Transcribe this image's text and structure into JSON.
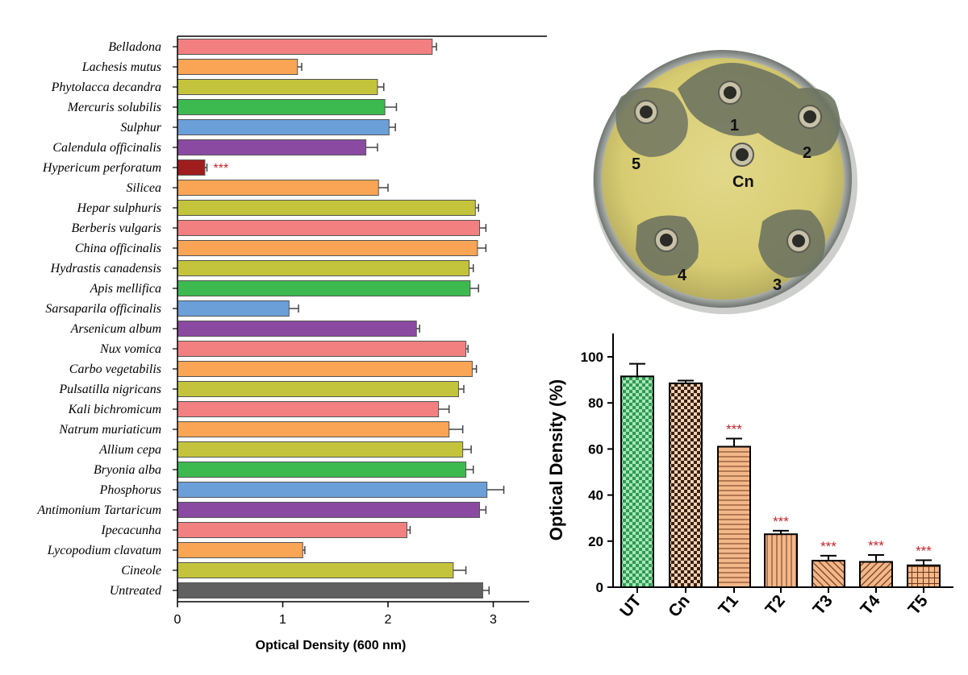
{
  "chart_data": [
    {
      "type": "bar",
      "orientation": "horizontal",
      "xlabel": "Optical Density (600 nm)",
      "xlim": [
        0,
        3.35
      ],
      "xticks": [
        0,
        1,
        2,
        3
      ],
      "grid": false,
      "categories": [
        "Belladona",
        "Lachesis mutus",
        "Phytolacca decandra",
        "Mercuris solubilis",
        "Sulphur",
        "Calendula officinalis",
        "Hypericum perforatum",
        "Silicea",
        "Hepar sulphuris",
        "Berberis vulgaris",
        "China officinalis",
        "Hydrastis canadensis",
        "Apis mellifica",
        "Sarsaparila officinalis",
        "Arsenicum album",
        "Nux vomica",
        "Carbo vegetabilis",
        "Pulsatilla nigricans",
        "Kali bichromicum",
        "Natrum muriaticum",
        "Allium cepa",
        "Bryonia alba",
        "Phosphorus",
        "Antimonium Tartaricum",
        "Ipecacunha",
        "Lycopodium clavatum",
        "Cineole",
        "Untreated"
      ],
      "values": [
        2.42,
        1.14,
        1.9,
        1.97,
        2.01,
        1.79,
        0.26,
        1.91,
        2.83,
        2.87,
        2.85,
        2.77,
        2.78,
        1.06,
        2.27,
        2.74,
        2.8,
        2.67,
        2.48,
        2.58,
        2.71,
        2.74,
        2.94,
        2.87,
        2.18,
        1.19,
        2.62,
        2.9
      ],
      "errors": [
        0.04,
        0.04,
        0.06,
        0.11,
        0.06,
        0.11,
        0.02,
        0.09,
        0.03,
        0.06,
        0.08,
        0.04,
        0.08,
        0.09,
        0.03,
        0.02,
        0.04,
        0.05,
        0.1,
        0.13,
        0.08,
        0.07,
        0.16,
        0.06,
        0.03,
        0.02,
        0.12,
        0.06
      ],
      "colors": [
        "#f28080",
        "#f9a555",
        "#c4c43c",
        "#3dba4f",
        "#6a9fd8",
        "#8a4aa2",
        "#a01d1d",
        "#f9a555",
        "#c4c43c",
        "#f28080",
        "#f9a555",
        "#c4c43c",
        "#3dba4f",
        "#6a9fd8",
        "#8a4aa2",
        "#f28080",
        "#f9a555",
        "#c4c43c",
        "#f28080",
        "#f9a555",
        "#c4c43c",
        "#3dba4f",
        "#6a9fd8",
        "#8a4aa2",
        "#f28080",
        "#f9a555",
        "#c4c43c",
        "#606060"
      ],
      "annotations": [
        {
          "category": "Hypericum perforatum",
          "text": "***",
          "color": "#c0262d"
        }
      ]
    },
    {
      "type": "bar",
      "ylabel": "Optical Density (%)",
      "ylim": [
        0,
        110
      ],
      "yticks": [
        0,
        20,
        40,
        60,
        80,
        100
      ],
      "categories": [
        "UT",
        "Cn",
        "T1",
        "T2",
        "T3",
        "T4",
        "T5"
      ],
      "values": [
        91.5,
        88.5,
        61,
        23,
        11.5,
        11,
        9.5
      ],
      "errors": [
        5.5,
        1.2,
        3.5,
        1.5,
        2.2,
        3,
        2.2
      ],
      "patterns": [
        "green-check",
        "brown-check",
        "hlines",
        "vlines",
        "diag",
        "diag-back",
        "grid"
      ],
      "significance": [
        "",
        "",
        "***",
        "***",
        "***",
        "***",
        "***"
      ],
      "significance_color": "#c0262d"
    }
  ],
  "plate_labels": [
    "1",
    "2",
    "3",
    "4",
    "5",
    "Cn"
  ]
}
